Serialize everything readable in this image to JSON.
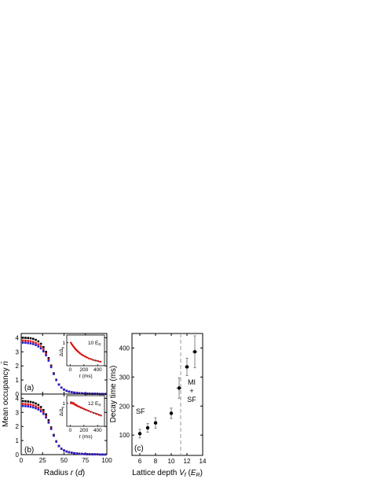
{
  "chart_data": [
    {
      "id": "a",
      "type": "scatter",
      "panel_label": "(a)",
      "xlim": [
        0,
        100
      ],
      "ylim": [
        0,
        4.3
      ],
      "xticks": [
        0,
        25,
        50,
        75,
        100
      ],
      "yticks": [
        0,
        1,
        2,
        3,
        4
      ],
      "grid": false,
      "series": [
        {
          "color": "#000000",
          "x": [
            2,
            5,
            8,
            11,
            14,
            17,
            20,
            23,
            26,
            29,
            32,
            35,
            38,
            41,
            44,
            47,
            50,
            53,
            56,
            59,
            62,
            65,
            68,
            71,
            74,
            77,
            80,
            83,
            86,
            89,
            92,
            95,
            98
          ],
          "y": [
            4.0,
            3.99,
            3.98,
            3.96,
            3.92,
            3.85,
            3.74,
            3.57,
            3.33,
            3.0,
            2.55,
            2.02,
            1.48,
            1.02,
            0.68,
            0.46,
            0.32,
            0.23,
            0.17,
            0.13,
            0.1,
            0.08,
            0.06,
            0.05,
            0.04,
            0.03,
            0.03,
            0.02,
            0.02,
            0.02,
            0.01,
            0.01,
            0.01
          ]
        },
        {
          "color": "#e01010",
          "x": [
            2,
            5,
            8,
            11,
            14,
            17,
            20,
            23,
            26,
            29,
            32,
            35,
            38,
            41,
            44,
            47,
            50,
            53,
            56,
            59,
            62,
            65,
            68,
            71,
            74,
            77,
            80,
            83,
            86,
            89,
            92,
            95,
            98
          ],
          "y": [
            3.8,
            3.79,
            3.77,
            3.74,
            3.7,
            3.63,
            3.53,
            3.38,
            3.16,
            2.86,
            2.45,
            1.96,
            1.45,
            1.01,
            0.68,
            0.46,
            0.32,
            0.23,
            0.17,
            0.13,
            0.1,
            0.08,
            0.06,
            0.05,
            0.04,
            0.03,
            0.03,
            0.02,
            0.02,
            0.02,
            0.01,
            0.01,
            0.01
          ]
        },
        {
          "color": "#2020d0",
          "x": [
            2,
            5,
            8,
            11,
            14,
            17,
            20,
            23,
            26,
            29,
            32,
            35,
            38,
            41,
            44,
            47,
            50,
            53,
            56,
            59,
            62,
            65,
            68,
            71,
            74,
            77,
            80,
            83,
            86,
            89,
            92,
            95,
            98
          ],
          "y": [
            3.65,
            3.64,
            3.62,
            3.59,
            3.55,
            3.48,
            3.38,
            3.24,
            3.03,
            2.75,
            2.37,
            1.91,
            1.42,
            0.99,
            0.67,
            0.46,
            0.32,
            0.23,
            0.17,
            0.13,
            0.1,
            0.08,
            0.06,
            0.05,
            0.04,
            0.03,
            0.03,
            0.02,
            0.02,
            0.02,
            0.01,
            0.01,
            0.01
          ]
        }
      ],
      "inset": {
        "label": "10 E",
        "label_sub": "R",
        "xlabel_var": "τ",
        "xlabel_unit": " (ms)",
        "ylabel": "Δ/Δ",
        "ylabel_sub": "0",
        "xlim": [
          -50,
          500
        ],
        "ylim": [
          0.25,
          1.25
        ],
        "xticks": [
          0,
          200,
          400
        ],
        "yticks": [
          1
        ],
        "points": {
          "x": [
            10,
            20,
            30,
            40,
            50,
            60,
            70,
            80,
            90,
            100,
            110,
            120,
            135,
            150,
            170,
            190,
            215,
            240,
            270,
            300,
            335,
            370,
            410,
            445
          ],
          "y": [
            1.0,
            0.96,
            0.93,
            0.9,
            0.87,
            0.84,
            0.81,
            0.79,
            0.76,
            0.74,
            0.72,
            0.7,
            0.67,
            0.64,
            0.61,
            0.58,
            0.55,
            0.52,
            0.49,
            0.47,
            0.44,
            0.42,
            0.4,
            0.38
          ]
        },
        "fit": {
          "x": [
            0,
            50,
            100,
            150,
            200,
            250,
            300,
            350,
            400,
            450
          ],
          "y": [
            1.02,
            0.87,
            0.75,
            0.65,
            0.58,
            0.52,
            0.47,
            0.43,
            0.4,
            0.37
          ]
        }
      }
    },
    {
      "id": "b",
      "type": "scatter",
      "panel_label": "(b)",
      "xlabel_pre": "Radius ",
      "xlabel_var": "r",
      "xlabel_post": " (",
      "xlabel_var2": "d",
      "xlabel_end": ")",
      "ylabel_pre": "Mean occupancy ",
      "ylabel_var": "n̄",
      "xlim": [
        0,
        100
      ],
      "ylim": [
        0,
        4.3
      ],
      "xticks": [
        0,
        25,
        50,
        75,
        100
      ],
      "xtick_labels": [
        "0",
        "25",
        "50",
        "75",
        "100"
      ],
      "yticks": [
        0,
        1,
        2,
        3,
        4
      ],
      "ytick_labels": [
        "0",
        "1",
        "2",
        "3",
        "4"
      ],
      "grid": false,
      "series": [
        {
          "color": "#000000",
          "x": [
            2,
            5,
            8,
            11,
            14,
            17,
            20,
            23,
            26,
            29,
            32,
            35,
            38,
            41,
            44,
            47,
            50,
            53,
            56,
            59,
            62,
            65,
            68,
            71,
            74,
            77,
            80,
            83,
            86,
            89,
            92,
            95,
            98
          ],
          "y": [
            3.8,
            3.79,
            3.77,
            3.74,
            3.7,
            3.63,
            3.53,
            3.38,
            3.16,
            2.86,
            2.44,
            1.93,
            1.4,
            0.95,
            0.62,
            0.42,
            0.3,
            0.22,
            0.17,
            0.13,
            0.1,
            0.08,
            0.06,
            0.05,
            0.04,
            0.03,
            0.03,
            0.02,
            0.02,
            0.02,
            0.01,
            0.01,
            0.01
          ]
        },
        {
          "color": "#e01010",
          "x": [
            2,
            5,
            8,
            11,
            14,
            17,
            20,
            23,
            26,
            29,
            32,
            35,
            38,
            41,
            44,
            47,
            50,
            53,
            56,
            59,
            62,
            65,
            68,
            71,
            74,
            77,
            80,
            83,
            86,
            89,
            92,
            95,
            98
          ],
          "y": [
            3.6,
            3.59,
            3.57,
            3.54,
            3.5,
            3.43,
            3.34,
            3.2,
            3.0,
            2.72,
            2.33,
            1.86,
            1.36,
            0.93,
            0.61,
            0.42,
            0.3,
            0.22,
            0.17,
            0.13,
            0.1,
            0.08,
            0.06,
            0.05,
            0.04,
            0.03,
            0.03,
            0.02,
            0.02,
            0.02,
            0.01,
            0.01,
            0.01
          ]
        },
        {
          "color": "#2020d0",
          "x": [
            2,
            5,
            8,
            11,
            14,
            17,
            20,
            23,
            26,
            29,
            32,
            35,
            38,
            41,
            44,
            47,
            50,
            53,
            56,
            59,
            62,
            65,
            68,
            71,
            74,
            77,
            80,
            83,
            86,
            89,
            92,
            95,
            98
          ],
          "y": [
            3.45,
            3.44,
            3.42,
            3.39,
            3.35,
            3.29,
            3.2,
            3.07,
            2.89,
            2.63,
            2.27,
            1.82,
            1.34,
            0.92,
            0.6,
            0.41,
            0.29,
            0.22,
            0.17,
            0.13,
            0.1,
            0.08,
            0.06,
            0.05,
            0.04,
            0.03,
            0.03,
            0.02,
            0.02,
            0.02,
            0.01,
            0.01,
            0.01
          ]
        }
      ],
      "inset": {
        "label": "12 E",
        "label_sub": "R",
        "xlabel_var": "τ",
        "xlabel_unit": " (ms)",
        "ylabel": "Δ/Δ",
        "ylabel_sub": "0",
        "xlim": [
          -50,
          500
        ],
        "ylim": [
          0.25,
          1.25
        ],
        "xticks": [
          0,
          200,
          400
        ],
        "yticks": [
          1
        ],
        "points": {
          "x": [
            10,
            20,
            30,
            40,
            50,
            60,
            70,
            80,
            90,
            100,
            115,
            130,
            150,
            175,
            200,
            230,
            265,
            300,
            340,
            380,
            420,
            450
          ],
          "y": [
            1.0,
            1.03,
            1.01,
            0.99,
            1.01,
            0.97,
            0.95,
            0.96,
            0.93,
            0.92,
            0.9,
            0.89,
            0.86,
            0.84,
            0.81,
            0.78,
            0.75,
            0.72,
            0.68,
            0.65,
            0.62,
            0.6
          ]
        },
        "fit": {
          "x": [
            0,
            50,
            100,
            150,
            200,
            250,
            300,
            350,
            400,
            450
          ],
          "y": [
            1.05,
            0.99,
            0.93,
            0.88,
            0.83,
            0.78,
            0.73,
            0.69,
            0.65,
            0.61
          ]
        }
      }
    },
    {
      "id": "c",
      "type": "scatter",
      "panel_label": "(c)",
      "xlabel_pre": "Lattice depth ",
      "xlabel_var": "V",
      "xlabel_sub": "f",
      "xlabel_mid": " (",
      "xlabel_var2": "E",
      "xlabel_sub2": "R",
      "xlabel_end": ")",
      "ylabel": "Decay time (ms)",
      "xlim": [
        5,
        14
      ],
      "ylim": [
        30,
        450
      ],
      "xticks": [
        6,
        8,
        10,
        12,
        14
      ],
      "xtick_labels": [
        "6",
        "8",
        "10",
        "12",
        "14"
      ],
      "yticks": [
        100,
        200,
        300,
        400
      ],
      "ytick_labels": [
        "100",
        "200",
        "300",
        "400"
      ],
      "grid": false,
      "points": {
        "x": [
          6,
          7,
          8,
          10,
          11,
          12,
          13
        ],
        "y": [
          105,
          125,
          142,
          175,
          262,
          335,
          387
        ],
        "yerr": [
          15,
          15,
          18,
          18,
          35,
          30,
          55
        ],
        "xerr": [
          0.1,
          0.1,
          0.1,
          0.15,
          0.35,
          0.3,
          0.35
        ]
      },
      "threshold_x": 11.2,
      "region_labels": {
        "left": "SF",
        "right_1": "MI",
        "right_2": "+",
        "right_3": "SF"
      }
    }
  ]
}
